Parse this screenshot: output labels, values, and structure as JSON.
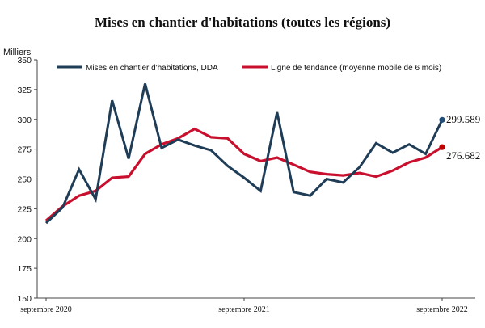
{
  "chart_data": {
    "type": "line",
    "title": "Mises en chantier d'habitations (toutes les régions)",
    "ylabel": "Milliers",
    "ylim": [
      150,
      350
    ],
    "yticks": [
      150,
      175,
      200,
      225,
      250,
      275,
      300,
      325,
      350
    ],
    "x_tick_labels": [
      "septembre 2020",
      "septembre 2021",
      "septembre 2022"
    ],
    "x_tick_indices": [
      0,
      12,
      24
    ],
    "grid": false,
    "legend_position": "top",
    "series": [
      {
        "name": "Mises en chantier d'habitations, DDA",
        "color": "#1f3d57",
        "marker_color": "#1f4e79",
        "values": [
          213,
          226,
          258,
          233,
          316,
          267,
          330,
          276,
          283,
          278,
          274,
          261,
          251,
          240,
          306,
          239,
          236,
          250,
          247,
          260,
          280,
          272,
          279,
          271,
          299.589
        ],
        "end_label": "299.589"
      },
      {
        "name": "Ligne de tendance (moyenne mobile de 6 mois)",
        "color": "#c8102e",
        "marker_color": "#c00000",
        "values": [
          215,
          227,
          236,
          240,
          251,
          252,
          271,
          279,
          284,
          292,
          285,
          284,
          271,
          265,
          268,
          262,
          256,
          254,
          253,
          255,
          252,
          257,
          264,
          268,
          276.682
        ],
        "end_label": "276.682"
      }
    ]
  }
}
